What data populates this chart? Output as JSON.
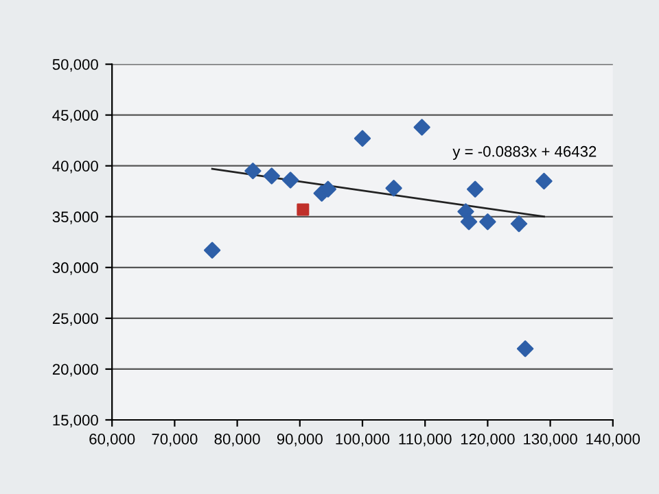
{
  "chart_data": {
    "type": "scatter",
    "xlim": [
      60000,
      140000
    ],
    "xticks": [
      {
        "value": 60000,
        "label": "60,000"
      },
      {
        "value": 70000,
        "label": "70,000"
      },
      {
        "value": 80000,
        "label": "80,000"
      },
      {
        "value": 90000,
        "label": "90,000"
      },
      {
        "value": 100000,
        "label": "100,000"
      },
      {
        "value": 110000,
        "label": "110,000"
      },
      {
        "value": 120000,
        "label": "120,000"
      },
      {
        "value": 130000,
        "label": "130,000"
      },
      {
        "value": 140000,
        "label": "140,000"
      }
    ],
    "ylim": [
      15000,
      50000
    ],
    "yticks": [
      {
        "value": 15000,
        "label": "15,000"
      },
      {
        "value": 20000,
        "label": "20,000"
      },
      {
        "value": 25000,
        "label": "25,000"
      },
      {
        "value": 30000,
        "label": "30,000"
      },
      {
        "value": 35000,
        "label": "35,000"
      },
      {
        "value": 40000,
        "label": "40,000"
      },
      {
        "value": 45000,
        "label": "45,000"
      },
      {
        "value": 50000,
        "label": "50,000"
      }
    ],
    "grid": "y",
    "series": [
      {
        "marker": "diamond",
        "color": "#2e5fa8",
        "x": [
          76000,
          82500,
          85500,
          88500,
          93500,
          94500,
          100000,
          105000,
          109500,
          116500,
          117000,
          118000,
          120000,
          125000,
          126000,
          129000
        ],
        "values": [
          31700,
          39500,
          39000,
          38600,
          37300,
          37700,
          42700,
          37800,
          43800,
          35500,
          34500,
          37700,
          34500,
          34300,
          22000,
          38500
        ]
      },
      {
        "marker": "square",
        "color": "#c0302a",
        "x": [
          90500
        ],
        "values": [
          35700
        ]
      },
      {
        "type": "line",
        "marker": "none",
        "color": "#222222",
        "x": [
          76000,
          129000
        ],
        "values": [
          39700,
          35000
        ]
      }
    ],
    "annotations": [
      "y = -0.0883x + 46432"
    ]
  }
}
